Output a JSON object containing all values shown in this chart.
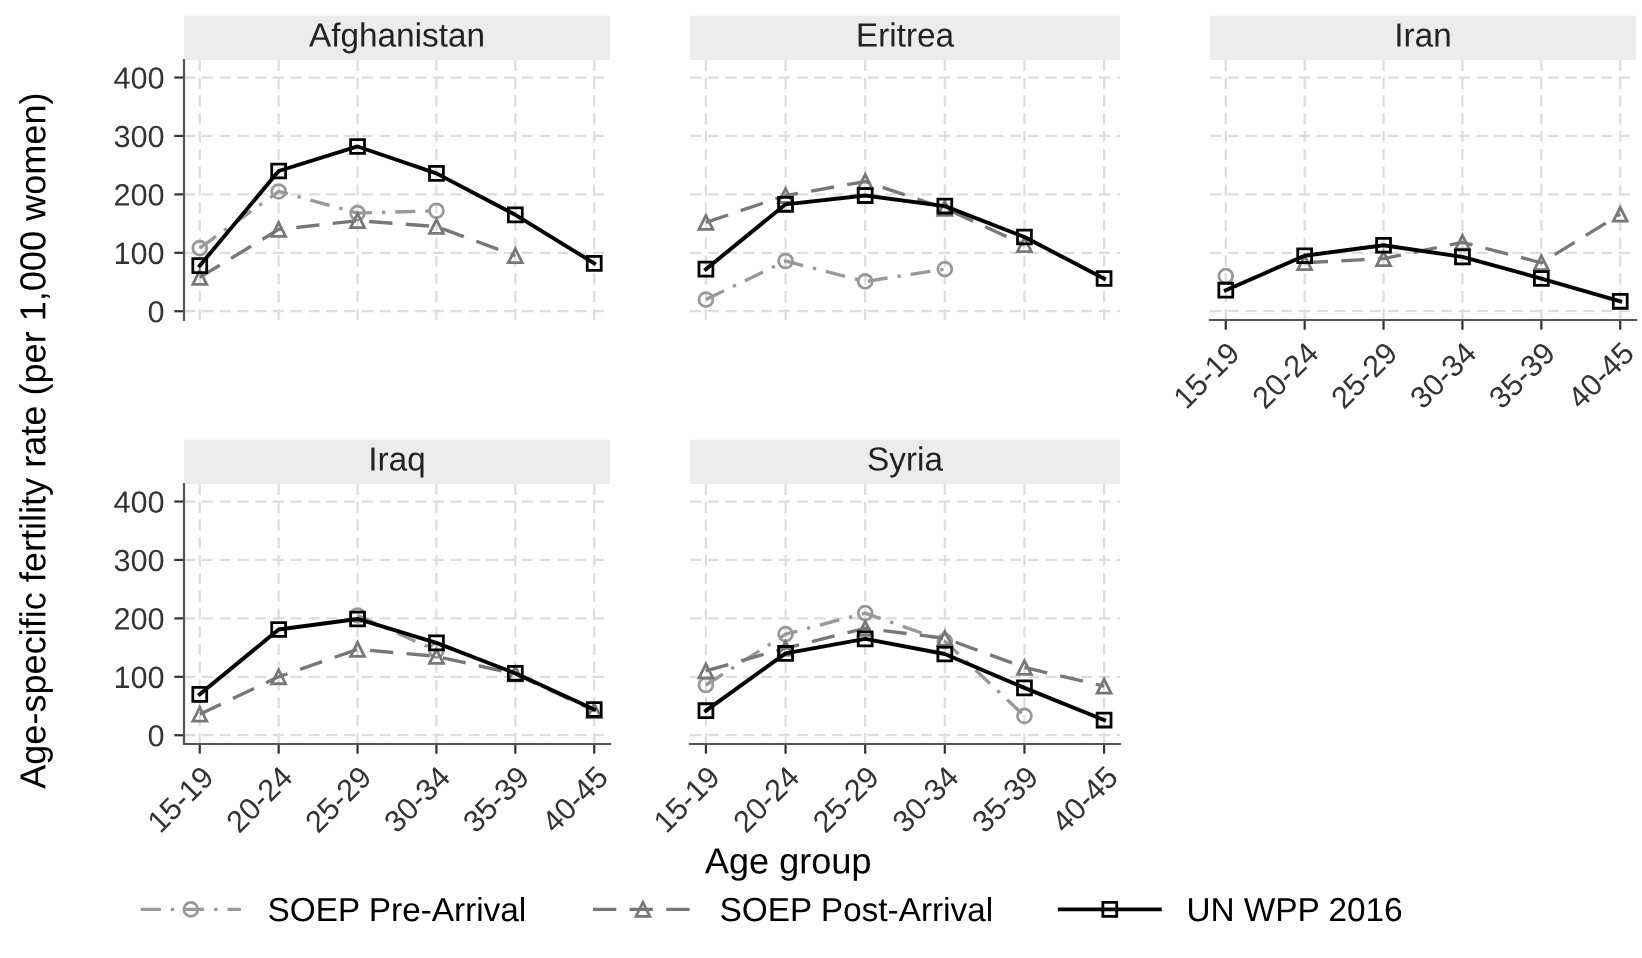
{
  "chart_data": [
    {
      "type": "line",
      "title": "Afghanistan",
      "ylabel": "Age-specific fertility rate (per 1,000 women)",
      "categories": [
        "15-19",
        "20-24",
        "25-29",
        "30-34",
        "35-39",
        "40-45"
      ],
      "ylim": [
        -15,
        430
      ],
      "yticks": [
        0,
        100,
        200,
        300,
        400
      ],
      "grid": true,
      "tick_labels": "y",
      "legend": "bottom",
      "series": [
        {
          "name": "SOEP Pre-Arrival",
          "color": "#999999",
          "marker": "circle",
          "line_style": "dashdot",
          "values": [
            108,
            205,
            168,
            172,
            null,
            null
          ]
        },
        {
          "name": "SOEP Post-Arrival",
          "color": "#777777",
          "marker": "triangle",
          "line_style": "dashed",
          "values": [
            58,
            140,
            155,
            145,
            95,
            null
          ]
        },
        {
          "name": "UN WPP 2016",
          "color": "#000000",
          "marker": "square",
          "line_style": "solid",
          "values": [
            78,
            240,
            282,
            236,
            165,
            82
          ]
        }
      ]
    },
    {
      "type": "line",
      "title": "Eritrea",
      "categories": [
        "15-19",
        "20-24",
        "25-29",
        "30-34",
        "35-39",
        "40-45"
      ],
      "ylim": [
        -15,
        430
      ],
      "yticks": [
        0,
        100,
        200,
        300,
        400
      ],
      "grid": true,
      "tick_labels": false,
      "series": [
        {
          "name": "SOEP Pre-Arrival",
          "color": "#999999",
          "marker": "circle",
          "line_style": "dashdot",
          "values": [
            20,
            86,
            51,
            72,
            null,
            null
          ]
        },
        {
          "name": "SOEP Post-Arrival",
          "color": "#777777",
          "marker": "triangle",
          "line_style": "dashed",
          "values": [
            152,
            198,
            222,
            176,
            114,
            null
          ]
        },
        {
          "name": "UN WPP 2016",
          "color": "#000000",
          "marker": "square",
          "line_style": "solid",
          "values": [
            72,
            183,
            198,
            180,
            127,
            56
          ]
        }
      ]
    },
    {
      "type": "line",
      "title": "Iran",
      "categories": [
        "15-19",
        "20-24",
        "25-29",
        "30-34",
        "35-39",
        "40-45"
      ],
      "ylim": [
        -15,
        430
      ],
      "yticks": [
        0,
        100,
        200,
        300,
        400
      ],
      "grid": true,
      "tick_labels": "x",
      "series": [
        {
          "name": "SOEP Pre-Arrival",
          "color": "#999999",
          "marker": "circle",
          "line_style": "dashdot",
          "values": [
            60,
            null,
            null,
            null,
            null,
            null
          ]
        },
        {
          "name": "SOEP Post-Arrival",
          "color": "#777777",
          "marker": "triangle",
          "line_style": "dashed",
          "values": [
            null,
            83,
            90,
            118,
            83,
            166
          ]
        },
        {
          "name": "UN WPP 2016",
          "color": "#000000",
          "marker": "square",
          "line_style": "solid",
          "values": [
            36,
            95,
            113,
            93,
            56,
            17
          ]
        }
      ]
    },
    {
      "type": "line",
      "title": "Iraq",
      "xlabel": "Age group",
      "categories": [
        "15-19",
        "20-24",
        "25-29",
        "30-34",
        "35-39",
        "40-45"
      ],
      "ylim": [
        -15,
        430
      ],
      "yticks": [
        0,
        100,
        200,
        300,
        400
      ],
      "grid": true,
      "series": [
        {
          "name": "SOEP Pre-Arrival",
          "color": "#999999",
          "marker": "circle",
          "line_style": "dashdot",
          "values": [
            null,
            null,
            205,
            145,
            null,
            null
          ]
        },
        {
          "name": "SOEP Post-Arrival",
          "color": "#777777",
          "marker": "triangle",
          "line_style": "dashed",
          "values": [
            36,
            100,
            147,
            135,
            105,
            42
          ]
        },
        {
          "name": "UN WPP 2016",
          "color": "#000000",
          "marker": "square",
          "line_style": "solid",
          "values": [
            70,
            181,
            199,
            158,
            106,
            44
          ]
        }
      ]
    },
    {
      "type": "line",
      "title": "Syria",
      "categories": [
        "15-19",
        "20-24",
        "25-29",
        "30-34",
        "35-39",
        "40-45"
      ],
      "ylim": [
        -15,
        430
      ],
      "yticks": [
        0,
        100,
        200,
        300,
        400
      ],
      "grid": true,
      "tick_labels": "x",
      "series": [
        {
          "name": "SOEP Pre-Arrival",
          "color": "#999999",
          "marker": "circle",
          "line_style": "dashdot",
          "values": [
            86,
            173,
            209,
            161,
            33,
            null
          ]
        },
        {
          "name": "SOEP Post-Arrival",
          "color": "#777777",
          "marker": "triangle",
          "line_style": "dashed",
          "values": [
            110,
            149,
            183,
            166,
            116,
            84
          ]
        },
        {
          "name": "UN WPP 2016",
          "color": "#000000",
          "marker": "square",
          "line_style": "solid",
          "values": [
            42,
            140,
            165,
            139,
            81,
            26
          ]
        }
      ]
    }
  ]
}
